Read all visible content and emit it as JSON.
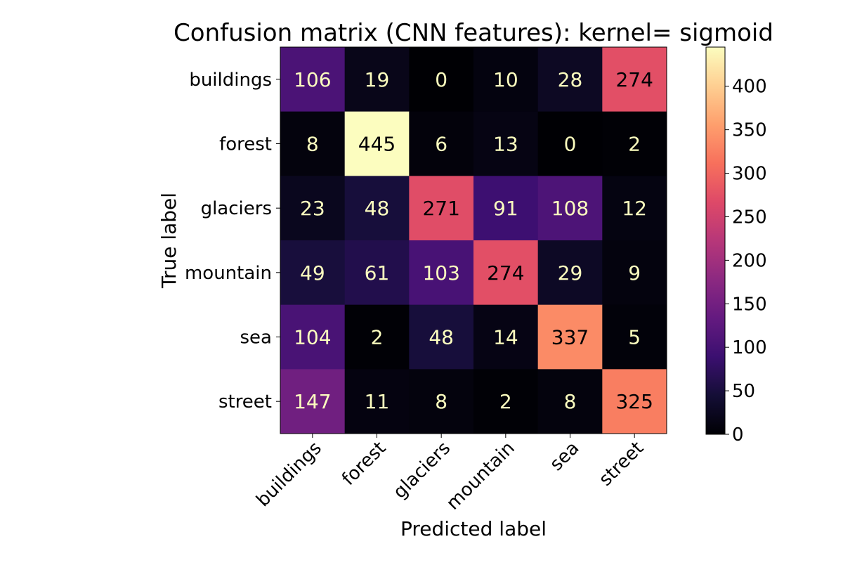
{
  "chart_data": {
    "type": "heatmap",
    "title": "Confusion matrix (CNN features): kernel= sigmoid",
    "xlabel": "Predicted label",
    "ylabel": "True label",
    "x_categories": [
      "buildings",
      "forest",
      "glaciers",
      "mountain",
      "sea",
      "street"
    ],
    "y_categories": [
      "buildings",
      "forest",
      "glaciers",
      "mountain",
      "sea",
      "street"
    ],
    "values": [
      [
        106,
        19,
        0,
        10,
        28,
        274
      ],
      [
        8,
        445,
        6,
        13,
        0,
        2
      ],
      [
        23,
        48,
        271,
        91,
        108,
        12
      ],
      [
        49,
        61,
        103,
        274,
        29,
        9
      ],
      [
        104,
        2,
        48,
        14,
        337,
        5
      ],
      [
        147,
        11,
        8,
        2,
        8,
        325
      ]
    ],
    "colormap": "magma",
    "colorbar": {
      "range": [
        0,
        445
      ],
      "ticks": [
        0,
        50,
        100,
        150,
        200,
        250,
        300,
        350,
        400
      ]
    },
    "label_colors": {
      "light": "#fcfdbf",
      "dark": "#000004"
    },
    "grid": false
  }
}
